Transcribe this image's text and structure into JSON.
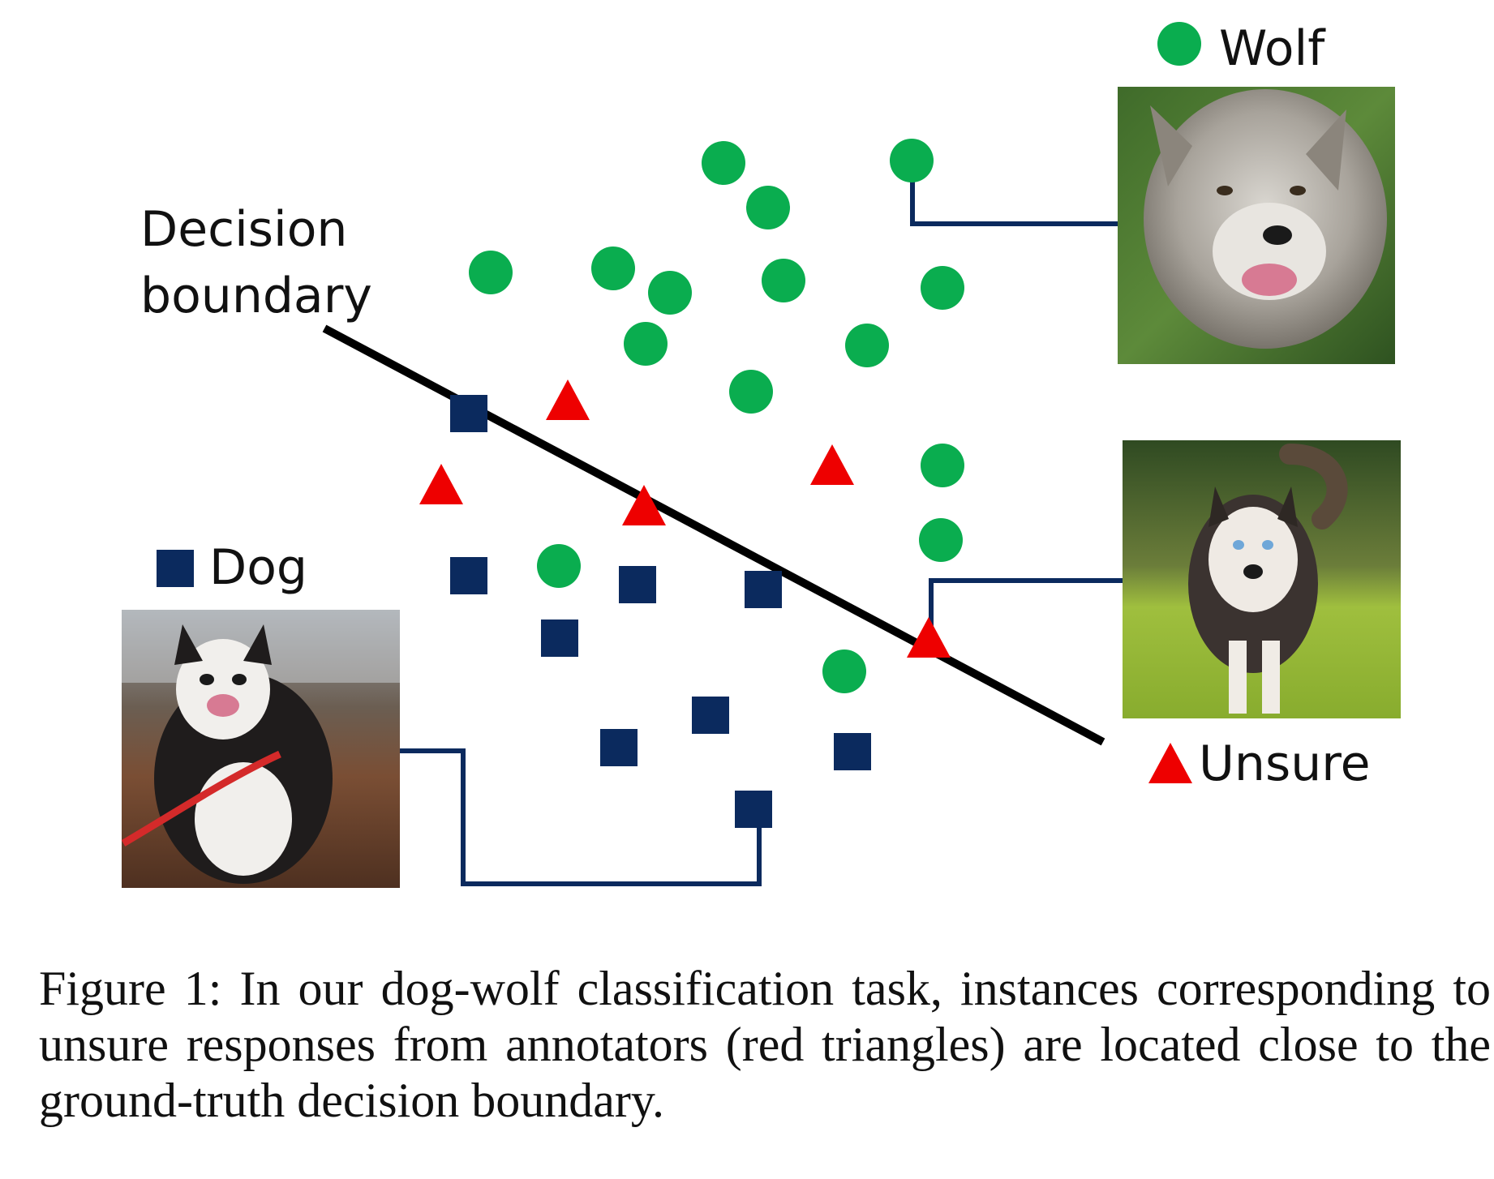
{
  "figure": {
    "labels": {
      "decision_boundary_line1": "Decision",
      "decision_boundary_line2": "boundary",
      "legend_wolf": "Wolf",
      "legend_dog": "Dog",
      "legend_unsure": "Unsure"
    },
    "colors": {
      "wolf": "#0aad4f",
      "dog": "#0b2a5e",
      "unsure": "#ee0000",
      "boundary": "#000000",
      "connector": "#0b2a5e"
    },
    "photos": {
      "wolf": "wolf-photo",
      "husky_right": "husky-photo",
      "dog_left": "dog-photo"
    }
  },
  "caption": "Figure 1: In our dog-wolf classification task, instances corresponding to unsure responses from annotators (red triangles) are located close to the ground-truth decision boundary."
}
